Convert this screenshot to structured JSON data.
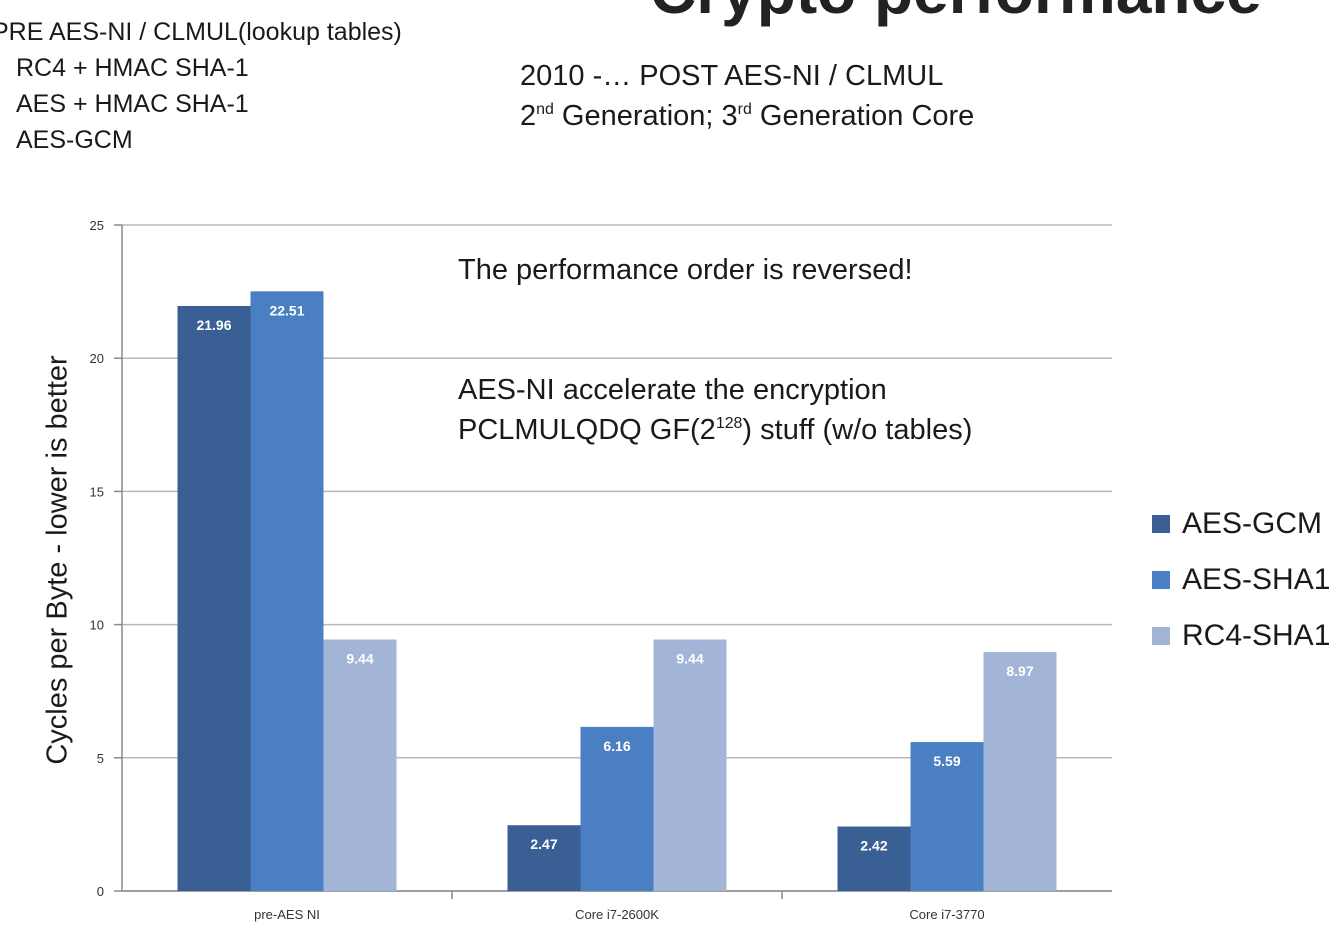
{
  "slide": {
    "title": "Crypto performance",
    "left_heading": "PRE AES-NI / CLMUL(lookup tables)",
    "left_items": [
      "RC4 + HMAC SHA-1",
      "AES + HMAC SHA-1",
      "AES-GCM"
    ],
    "right_line1": "2010 -… POST AES-NI / CLMUL",
    "right_line2": [
      "2",
      "nd",
      " Generation; 3",
      "rd",
      " Generation Core"
    ],
    "annotation1": "The performance order is reversed!",
    "annotation2": "AES-NI accelerate the encryption",
    "annotation3": [
      "PCLMULQDQ GF(2",
      "128",
      ") stuff  (w/o tables)"
    ]
  },
  "chart_data": {
    "type": "bar",
    "categories": [
      "pre-AES NI",
      "Core i7-2600K",
      "Core i7-3770"
    ],
    "series": [
      {
        "name": "AES-GCM",
        "values": [
          21.96,
          2.47,
          2.42
        ],
        "labels": [
          "21.96",
          "2.47",
          "2.42"
        ]
      },
      {
        "name": "AES-SHA1",
        "values": [
          22.51,
          6.16,
          5.59
        ],
        "labels": [
          "22.51",
          "6.16",
          "5.59"
        ]
      },
      {
        "name": "RC4-SHA1",
        "values": [
          9.44,
          9.44,
          8.97
        ],
        "labels": [
          "9.44",
          "9.44",
          "8.97"
        ]
      }
    ],
    "ylabel": "Cycles per Byte - lower is better",
    "yticks": [
      "0",
      "5",
      "10",
      "15",
      "20",
      "25"
    ],
    "ylim": [
      0,
      25
    ],
    "grid": true,
    "legend_position": "right",
    "colors": [
      "#3a5f95",
      "#4b7fc4",
      "#a3b5d7"
    ]
  }
}
